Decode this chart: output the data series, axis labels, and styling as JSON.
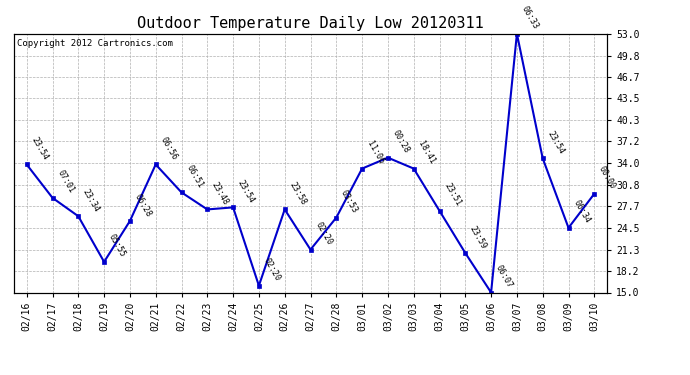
{
  "title": "Outdoor Temperature Daily Low 20120311",
  "copyright": "Copyright 2012 Cartronics.com",
  "x_labels": [
    "02/16",
    "02/17",
    "02/18",
    "02/19",
    "02/20",
    "02/21",
    "02/22",
    "02/23",
    "02/24",
    "02/25",
    "02/26",
    "02/27",
    "02/28",
    "03/01",
    "03/02",
    "03/03",
    "03/04",
    "03/05",
    "03/06",
    "03/07",
    "03/08",
    "03/09",
    "03/10"
  ],
  "y_values": [
    33.8,
    28.9,
    26.2,
    19.5,
    25.5,
    33.8,
    29.7,
    27.2,
    27.5,
    16.0,
    27.2,
    21.3,
    26.0,
    33.2,
    34.8,
    33.2,
    27.0,
    20.8,
    15.0,
    53.0,
    34.7,
    24.5,
    29.5
  ],
  "point_labels": [
    "23:54",
    "07:01",
    "23:34",
    "05:55",
    "06:28",
    "06:56",
    "06:51",
    "23:48",
    "23:54",
    "02:20",
    "23:58",
    "02:20",
    "03:53",
    "11:06",
    "00:28",
    "18:41",
    "23:51",
    "23:59",
    "06:07",
    "06:33",
    "23:54",
    "06:34",
    "00:00"
  ],
  "ylim": [
    15.0,
    53.0
  ],
  "yticks": [
    15.0,
    18.2,
    21.3,
    24.5,
    27.7,
    30.8,
    34.0,
    37.2,
    40.3,
    43.5,
    46.7,
    49.8,
    53.0
  ],
  "line_color": "#0000cc",
  "marker_color": "#0000cc",
  "marker_size": 4,
  "background_color": "#ffffff",
  "grid_color": "#b0b0b0",
  "title_fontsize": 11,
  "label_fontsize": 7,
  "point_label_fontsize": 6,
  "copyright_fontsize": 6.5
}
